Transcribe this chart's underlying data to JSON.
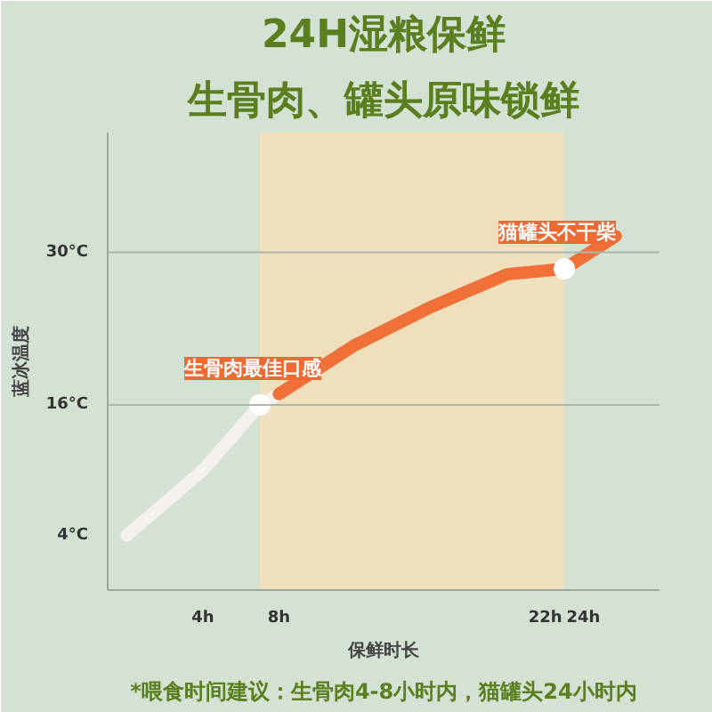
{
  "chart_data": {
    "type": "line",
    "title": "24H湿粮保鲜",
    "subtitle": "生骨肉、罐头原味锁鲜",
    "xlabel": "保鲜时长",
    "ylabel": "蓝冰温度",
    "xlim": [
      -1,
      28
    ],
    "ylim": [
      -1,
      41
    ],
    "xticks": [
      {
        "value": 4,
        "label": "4h"
      },
      {
        "value": 8,
        "label": "8h"
      },
      {
        "value": 22,
        "label": "22h"
      },
      {
        "value": 24,
        "label": "24h"
      }
    ],
    "yticks": [
      {
        "value": 4,
        "label": "4°C"
      },
      {
        "value": 16,
        "label": "16°C"
      },
      {
        "value": 30,
        "label": "30°C"
      }
    ],
    "series": [
      {
        "color": "#f4f1ee",
        "x": [
          0,
          4,
          7,
          8
        ],
        "values": [
          4,
          10,
          16,
          17
        ]
      },
      {
        "color": "#f07038",
        "x": [
          8,
          12,
          16,
          20,
          23,
          25.7
        ],
        "values": [
          17,
          21.5,
          25,
          28,
          28.5,
          31.5
        ]
      },
      {
        "type": "scatter",
        "color": "#ffffff",
        "x": [
          7,
          23
        ],
        "values": [
          16,
          28.5
        ]
      }
    ],
    "ref_lines": [
      {
        "axis": "y",
        "value": 16,
        "color": "#a9b8aa"
      },
      {
        "axis": "y",
        "value": 30,
        "color": "#a9b8aa"
      }
    ],
    "bands": [
      {
        "axis": "x",
        "from": 7,
        "to": 23,
        "color": "#f7dfb8"
      }
    ],
    "annotations": [
      {
        "text": "生骨肉最佳口感",
        "x": 7,
        "y": 16
      },
      {
        "text": "猫罐头不干柴",
        "x": 23,
        "y": 28.5
      },
      "*喂食时间建议：生骨肉4-8小时内，猫罐头24小时内"
    ],
    "grid": false,
    "line_style": "solid"
  }
}
